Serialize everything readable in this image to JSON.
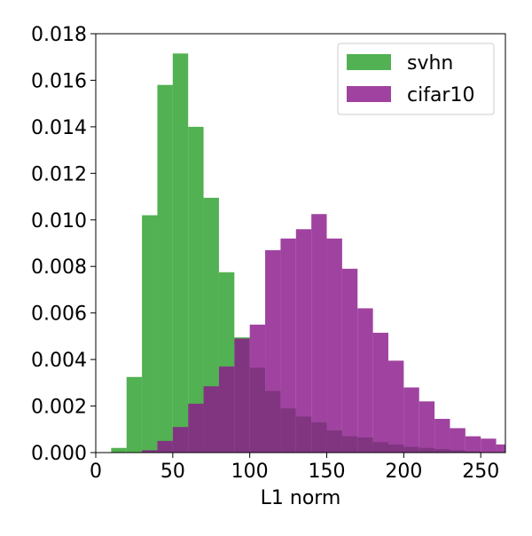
{
  "chart_data": {
    "type": "bar",
    "xlabel": "L1 norm",
    "ylabel": "",
    "xlim": [
      0,
      266
    ],
    "ylim": [
      0,
      0.018
    ],
    "bin_width": 10,
    "grid": false,
    "legend_position": "top-right",
    "x_ticks": [
      0,
      50,
      100,
      150,
      200,
      250
    ],
    "y_ticks": [
      0.0,
      0.002,
      0.004,
      0.006,
      0.008,
      0.01,
      0.012,
      0.014,
      0.016,
      0.018
    ],
    "x_tick_labels": [
      "0",
      "50",
      "100",
      "150",
      "200",
      "250"
    ],
    "y_tick_labels": [
      "0.000",
      "0.002",
      "0.004",
      "0.006",
      "0.008",
      "0.010",
      "0.012",
      "0.014",
      "0.016",
      "0.018"
    ],
    "series": [
      {
        "name": "svhn",
        "color": "#2ca02c",
        "bins_start": [
          10,
          20,
          30,
          40,
          50,
          60,
          70,
          80,
          90,
          100,
          110,
          120,
          130,
          140,
          150,
          160,
          170,
          180,
          190,
          200,
          210,
          220,
          230,
          240
        ],
        "values": [
          0.0002,
          0.00325,
          0.0102,
          0.0158,
          0.01715,
          0.014,
          0.01095,
          0.00775,
          0.00495,
          0.00365,
          0.00265,
          0.0019,
          0.00155,
          0.0013,
          0.00095,
          0.0007,
          0.00065,
          0.00045,
          0.00035,
          0.00025,
          0.0002,
          0.00015,
          0.0001,
          5e-05
        ]
      },
      {
        "name": "cifar10",
        "color": "#8b1a8b",
        "bins_start": [
          30,
          40,
          50,
          60,
          70,
          80,
          90,
          100,
          110,
          120,
          130,
          140,
          150,
          160,
          170,
          180,
          190,
          200,
          210,
          220,
          230,
          240,
          250,
          260
        ],
        "values": [
          0.0001,
          0.0005,
          0.0011,
          0.0021,
          0.00285,
          0.0037,
          0.0049,
          0.0055,
          0.0087,
          0.0092,
          0.0096,
          0.01025,
          0.0092,
          0.0079,
          0.0062,
          0.00515,
          0.00395,
          0.0028,
          0.0022,
          0.00145,
          0.00105,
          0.0007,
          0.0006,
          0.00035
        ]
      }
    ]
  }
}
